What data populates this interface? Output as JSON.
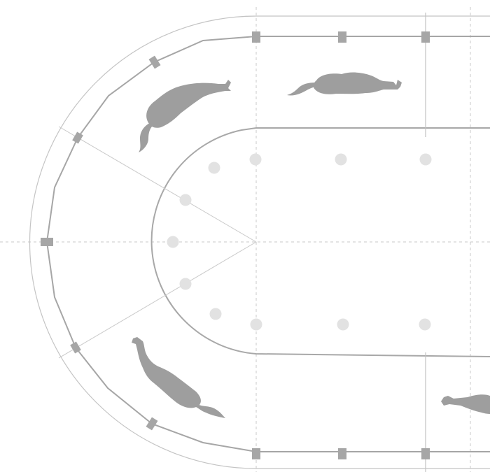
{
  "diagram": {
    "type": "oval-track-layout",
    "colors": {
      "background": "#ffffff",
      "outer_line": "#bfbfbf",
      "track_line": "#a6a6a6",
      "inner_rail": "#a8a8a8",
      "guide_line": "#c8c8c8",
      "posts": "#a6a6a6",
      "horses": "#9e9e9e",
      "markers": "#e2e2e2"
    },
    "horses": [
      {
        "name": "horse-top-left-curve",
        "facing": "inward-right"
      },
      {
        "name": "horse-top-straight",
        "facing": "right"
      },
      {
        "name": "horse-bottom-left-curve",
        "facing": "up-left"
      },
      {
        "name": "horse-bottom-straight",
        "facing": "left"
      }
    ],
    "marker_count": 12,
    "post_count": 12
  }
}
